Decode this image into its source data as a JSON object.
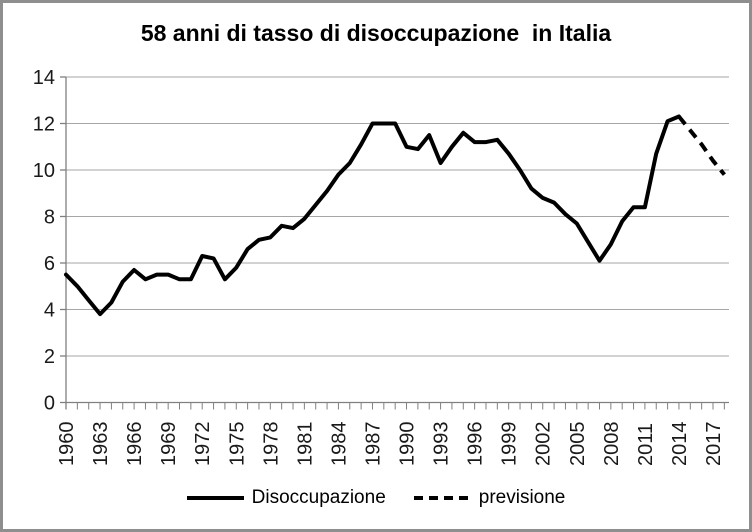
{
  "title": "58 anni di tasso di disoccupazione  in Italia",
  "legend": {
    "items": [
      {
        "label": "Disoccupazione",
        "style": "solid"
      },
      {
        "label": "previsione",
        "style": "dashed"
      }
    ]
  },
  "colors": {
    "line": "#000000",
    "gridline": "#a6a6a6",
    "axis": "#808080",
    "tick_text": "#1a1a1a",
    "frame_border": "#8e8e8e",
    "background": "#ffffff"
  },
  "chart_data": {
    "type": "line",
    "title": "58 anni di tasso di disoccupazione  in Italia",
    "xlabel": "",
    "ylabel": "",
    "ylim": [
      0,
      14
    ],
    "ytick_step": 2,
    "ytick_labels": [
      "14",
      "12",
      "10",
      "8",
      "6",
      "4",
      "2",
      "0"
    ],
    "xlim": [
      1960,
      2018
    ],
    "xtick_minor_every_year": true,
    "xtick_labels": [
      "1960",
      "1963",
      "1966",
      "1969",
      "1972",
      "1975",
      "1978",
      "1981",
      "1984",
      "1987",
      "1990",
      "1993",
      "1996",
      "1999",
      "2002",
      "2005",
      "2008",
      "2011",
      "2014",
      "2017"
    ],
    "grid": "horizontal-only",
    "legend_position": "bottom",
    "series": [
      {
        "name": "Disoccupazione",
        "style": "solid",
        "years": [
          1960,
          1961,
          1962,
          1963,
          1964,
          1965,
          1966,
          1967,
          1968,
          1969,
          1970,
          1971,
          1972,
          1973,
          1974,
          1975,
          1976,
          1977,
          1978,
          1979,
          1980,
          1981,
          1982,
          1983,
          1984,
          1985,
          1986,
          1987,
          1988,
          1989,
          1990,
          1991,
          1992,
          1993,
          1994,
          1995,
          1996,
          1997,
          1998,
          1999,
          2000,
          2001,
          2002,
          2003,
          2004,
          2005,
          2006,
          2007,
          2008,
          2009,
          2010,
          2011,
          2012,
          2013,
          2014
        ],
        "values": [
          5.5,
          5.0,
          4.4,
          3.8,
          4.3,
          5.2,
          5.7,
          5.3,
          5.5,
          5.5,
          5.3,
          5.3,
          6.3,
          6.2,
          5.3,
          5.8,
          6.6,
          7.0,
          7.1,
          7.6,
          7.5,
          7.9,
          8.5,
          9.1,
          9.8,
          10.3,
          11.1,
          12.0,
          12.0,
          12.0,
          11.0,
          10.9,
          11.5,
          10.3,
          11.0,
          11.6,
          11.2,
          11.2,
          11.3,
          10.7,
          10.0,
          9.2,
          8.8,
          8.6,
          8.1,
          7.7,
          6.9,
          6.1,
          6.8,
          7.8,
          8.4,
          8.4,
          10.7,
          12.1,
          12.3
        ]
      },
      {
        "name": "previsione",
        "style": "dashed",
        "years": [
          2014,
          2015,
          2016,
          2017,
          2018
        ],
        "values": [
          12.3,
          11.7,
          11.1,
          10.4,
          9.8
        ]
      }
    ]
  }
}
